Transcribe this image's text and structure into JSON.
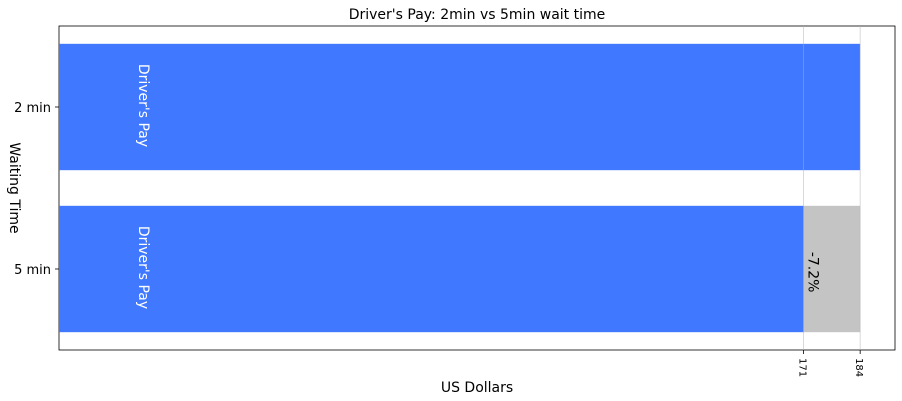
{
  "chart_data": {
    "type": "bar",
    "orientation": "horizontal",
    "stacked": true,
    "title": "Driver's Pay: 2min vs 5min wait time",
    "xlabel": "US Dollars",
    "ylabel": "Waiting Time",
    "categories": [
      "2 min",
      "5 min"
    ],
    "xlim": [
      0,
      192
    ],
    "xticks": [
      "171",
      "184"
    ],
    "xtick_values": [
      171,
      184
    ],
    "grid": true,
    "series": [
      {
        "color": "#4079ff",
        "values": [
          184,
          171
        ],
        "bar_labels": [
          "Driver's Pay",
          "Driver's Pay"
        ]
      },
      {
        "color": "#c4c4c4",
        "values": [
          0,
          13
        ],
        "bar_labels": [
          "",
          "-7.2%"
        ]
      }
    ]
  }
}
